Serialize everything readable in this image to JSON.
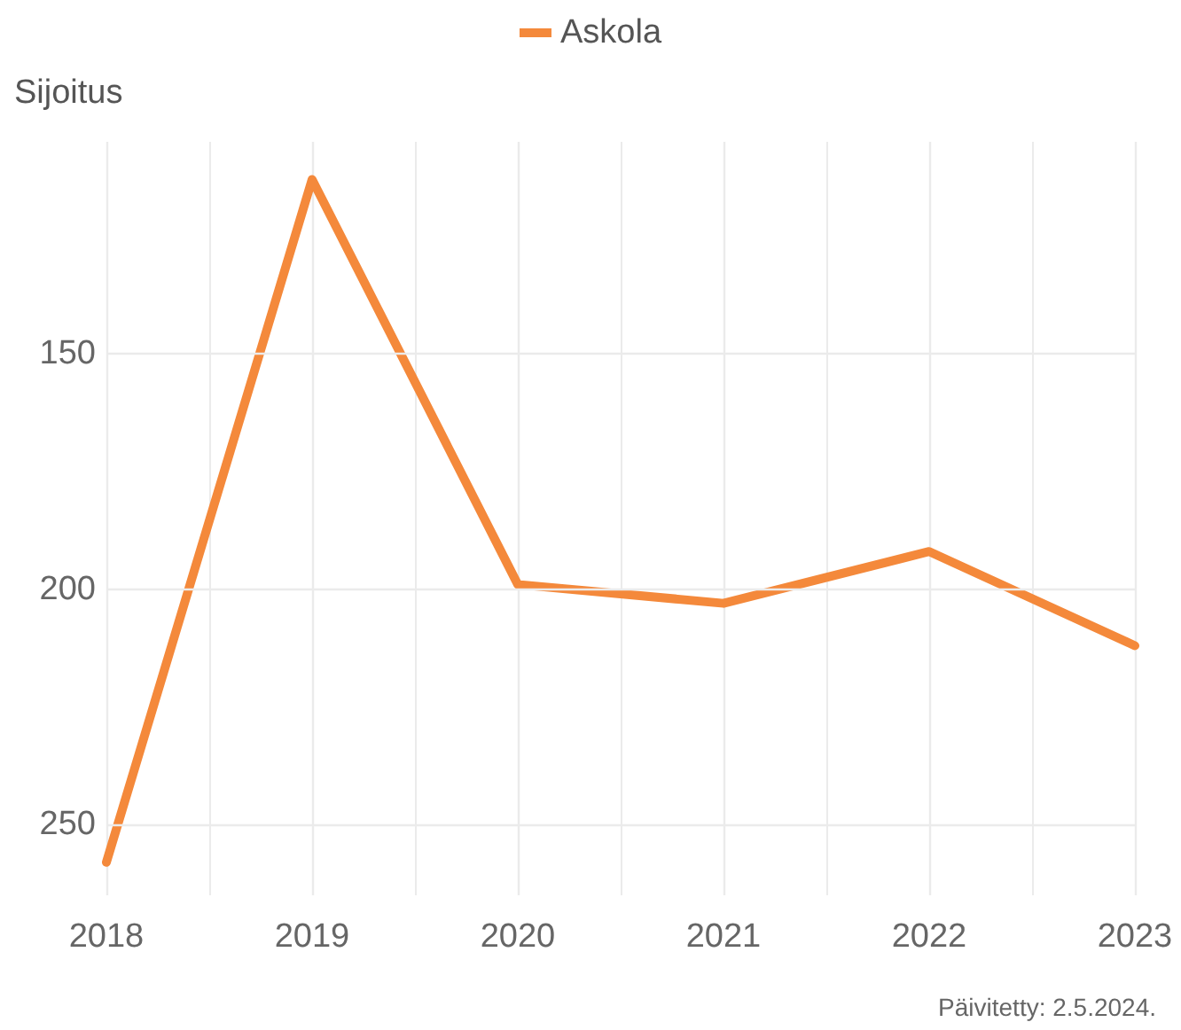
{
  "chart_data": {
    "type": "line",
    "ylabel": "Sijoitus",
    "x": [
      2018,
      2019,
      2020,
      2021,
      2022,
      2023
    ],
    "series": [
      {
        "name": "Askola",
        "color": "#f4893b",
        "values": [
          258,
          113,
          199,
          203,
          192,
          212
        ]
      }
    ],
    "xlim": [
      2018,
      2023
    ],
    "xticks": [
      2018,
      2019,
      2020,
      2021,
      2022,
      2023
    ],
    "ylim": [
      265,
      105
    ],
    "yticks": [
      150,
      200,
      250
    ],
    "grid": true,
    "legend": "top",
    "marker": "none",
    "line_style": "solid",
    "annotations": [
      "Päivitetty: 2.5.2024."
    ]
  }
}
